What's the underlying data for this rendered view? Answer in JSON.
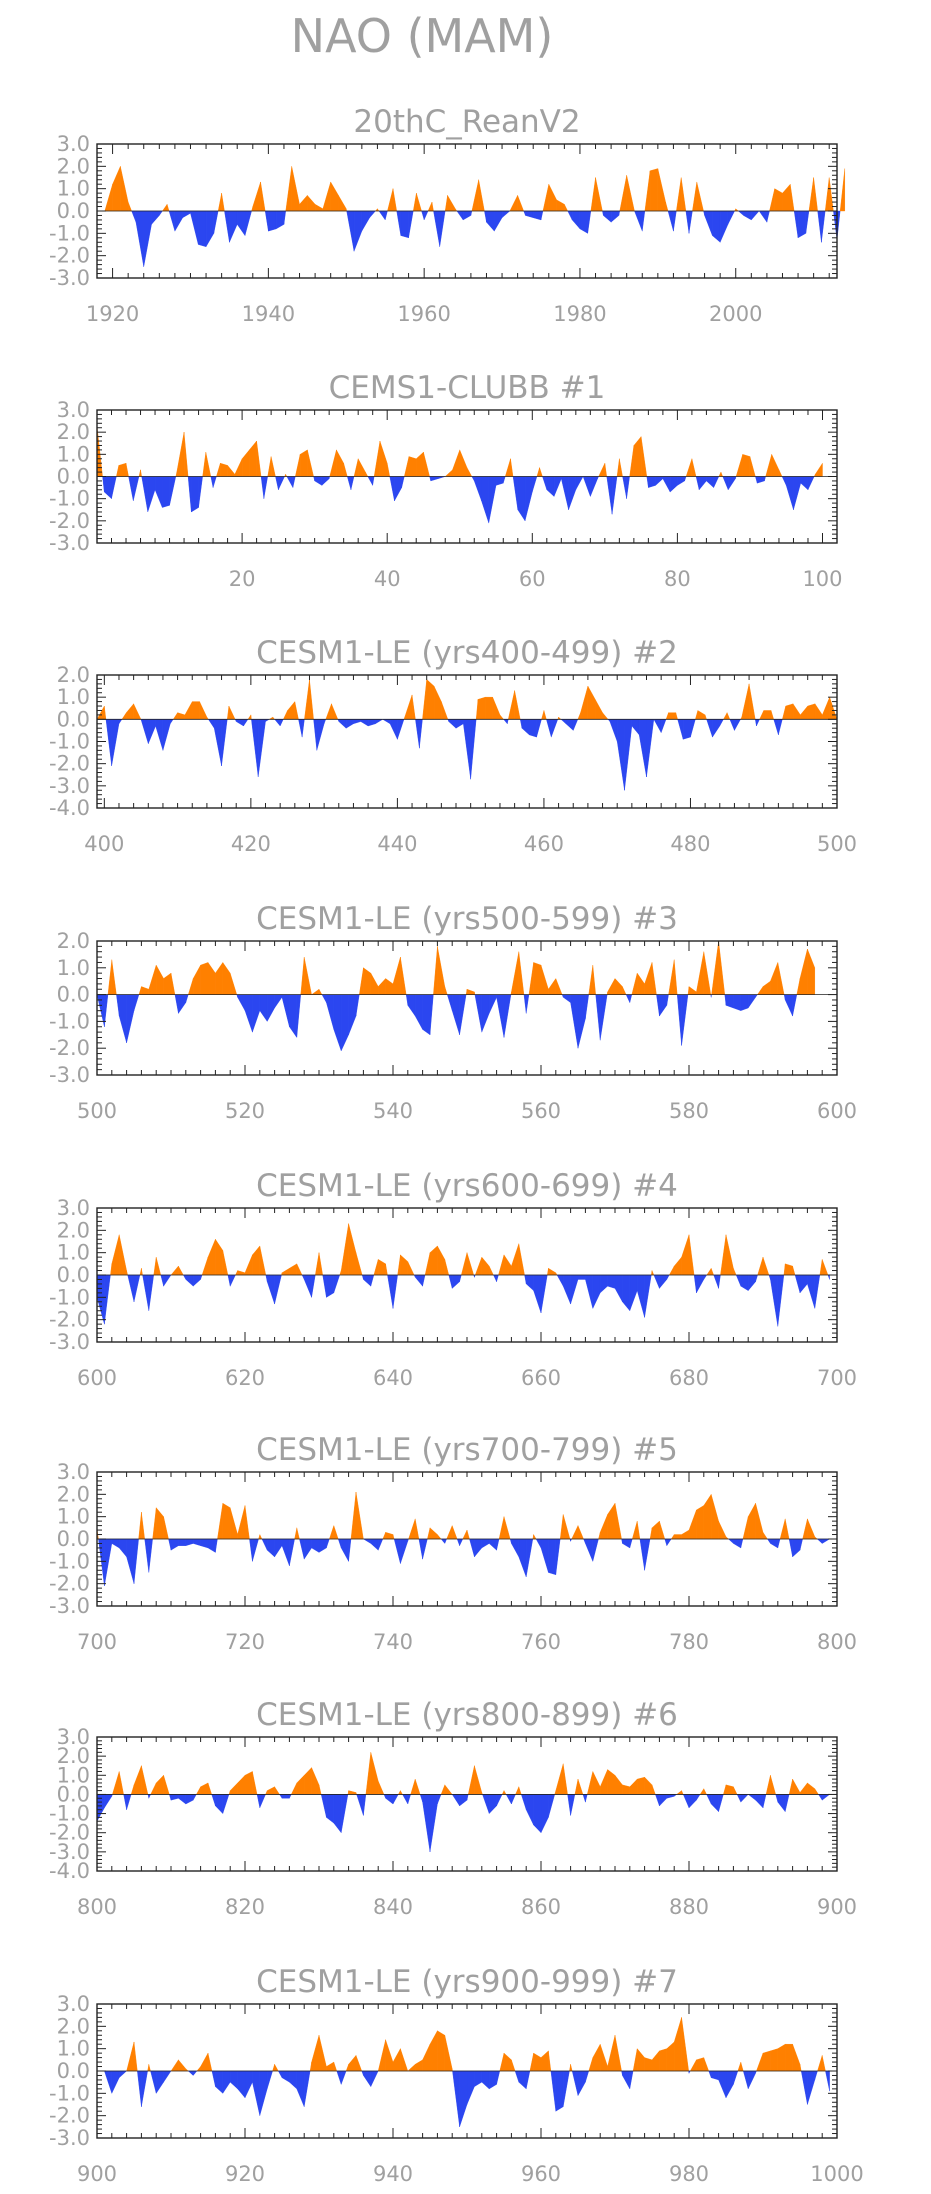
{
  "figure": {
    "title": "NAO (MAM)"
  },
  "colors": {
    "positive": "#ff8000",
    "negative": "#2b46f0",
    "axes": "#222222",
    "text": "#a0a0a0"
  },
  "chart_data": [
    {
      "type": "area",
      "title": "20thC_ReanV2",
      "xlim": [
        1918,
        2013
      ],
      "x_ticks": [
        1920,
        1940,
        1960,
        1980,
        2000
      ],
      "ylim": [
        -3.0,
        3.0
      ],
      "y_ticks": [
        "3.0",
        "2.0",
        "1.0",
        "0.0",
        "-1.0",
        "-2.0",
        "-3.0"
      ],
      "x_start": 1918,
      "values": [
        0.0,
        0.0,
        1.2,
        2.0,
        0.4,
        -0.5,
        -2.5,
        -0.6,
        -0.2,
        0.3,
        -0.9,
        -0.3,
        -0.1,
        -1.5,
        -1.6,
        -1.0,
        0.8,
        -1.4,
        -0.6,
        -1.1,
        0.2,
        1.3,
        -0.9,
        -0.8,
        -0.6,
        2.0,
        0.3,
        0.7,
        0.3,
        0.1,
        1.3,
        0.7,
        0.1,
        -1.8,
        -0.9,
        -0.3,
        0.1,
        -0.4,
        1.0,
        -1.1,
        -1.2,
        0.8,
        -0.4,
        0.4,
        -1.6,
        0.7,
        0.1,
        -0.4,
        -0.2,
        1.4,
        -0.5,
        -0.9,
        -0.3,
        0.0,
        0.7,
        -0.2,
        -0.3,
        -0.4,
        1.2,
        0.5,
        0.3,
        -0.4,
        -0.8,
        -1.0,
        1.5,
        -0.2,
        -0.5,
        -0.2,
        1.6,
        0.0,
        -0.9,
        1.8,
        1.9,
        0.4,
        -0.9,
        1.5,
        -1.0,
        1.3,
        -0.2,
        -1.1,
        -1.4,
        -0.6,
        0.1,
        -0.2,
        -0.4,
        0.0,
        -0.5,
        1.0,
        0.8,
        1.2,
        -1.2,
        -1.0,
        1.5,
        -1.4,
        1.5,
        -1.3,
        1.9
      ]
    },
    {
      "type": "area",
      "title": "CEMS1-CLUBB        #1",
      "xlim": [
        0,
        102
      ],
      "x_ticks": [
        20,
        40,
        60,
        80,
        100
      ],
      "ylim": [
        -3.0,
        3.0
      ],
      "y_ticks": [
        "3.0",
        "2.0",
        "1.0",
        "0.0",
        "-1.0",
        "-2.0",
        "-3.0"
      ],
      "x_start": 0,
      "values": [
        2.3,
        -0.7,
        -1.0,
        0.5,
        0.6,
        -1.1,
        0.3,
        -1.6,
        -0.6,
        -1.4,
        -1.3,
        0.2,
        2.0,
        -1.6,
        -1.4,
        1.1,
        -0.5,
        0.6,
        0.5,
        0.1,
        0.8,
        1.2,
        1.6,
        -1.0,
        0.9,
        -0.6,
        0.1,
        -0.5,
        1.0,
        1.2,
        -0.2,
        -0.4,
        -0.1,
        1.2,
        0.6,
        -0.6,
        0.8,
        0.2,
        -0.4,
        1.6,
        0.6,
        -1.1,
        -0.5,
        0.9,
        0.8,
        1.1,
        -0.2,
        -0.1,
        0.0,
        0.3,
        1.2,
        0.4,
        -0.2,
        -1.1,
        -2.1,
        -0.4,
        -0.3,
        0.8,
        -1.5,
        -2.0,
        -0.7,
        0.4,
        -0.6,
        -0.9,
        -0.1,
        -1.5,
        -0.6,
        0.0,
        -0.9,
        -0.1,
        0.6,
        -1.7,
        0.8,
        -1.0,
        1.4,
        1.8,
        -0.5,
        -0.4,
        -0.1,
        -0.7,
        -0.4,
        -0.2,
        0.8,
        -0.6,
        -0.2,
        -0.5,
        0.2,
        -0.6,
        -0.1,
        1.0,
        0.9,
        -0.3,
        -0.2,
        1.0,
        0.3,
        -0.4,
        -1.5,
        -0.3,
        -0.6,
        0.1,
        0.6
      ]
    },
    {
      "type": "area",
      "title": "CESM1-LE (yrs400-499) #2",
      "xlim": [
        399,
        500
      ],
      "x_ticks": [
        400,
        420,
        440,
        460,
        480,
        500
      ],
      "ylim": [
        -4.0,
        2.0
      ],
      "y_ticks": [
        "2.0",
        "1.0",
        "0.0",
        "-1.0",
        "-2.0",
        "-3.0",
        "-4.0"
      ],
      "x_start": 399,
      "values": [
        0.0,
        0.6,
        -2.1,
        -0.2,
        0.3,
        0.7,
        0.0,
        -1.1,
        -0.3,
        -1.4,
        -0.2,
        0.3,
        0.2,
        0.8,
        0.8,
        0.1,
        -0.4,
        -2.1,
        0.6,
        -0.1,
        -0.3,
        0.2,
        -2.6,
        -0.1,
        0.1,
        -0.3,
        0.4,
        0.8,
        -0.8,
        1.8,
        -1.4,
        -0.2,
        0.7,
        -0.1,
        -0.4,
        -0.2,
        -0.1,
        -0.3,
        -0.2,
        0.0,
        -0.2,
        -0.9,
        0.1,
        1.1,
        -1.3,
        1.8,
        1.5,
        0.8,
        -0.1,
        -0.4,
        -0.2,
        -2.7,
        0.9,
        1.0,
        1.0,
        0.2,
        -0.2,
        1.3,
        -0.4,
        -0.7,
        -0.8,
        0.4,
        -0.8,
        0.1,
        -0.2,
        -0.5,
        0.3,
        1.5,
        0.9,
        0.3,
        -0.1,
        -1.0,
        -3.2,
        -0.3,
        -0.7,
        -2.6,
        0.0,
        -0.6,
        0.3,
        0.3,
        -0.9,
        -0.8,
        0.4,
        0.2,
        -0.8,
        -0.3,
        0.3,
        -0.5,
        0.1,
        1.6,
        -0.3,
        0.4,
        0.4,
        -0.7,
        0.6,
        0.7,
        0.2,
        0.6,
        0.7,
        0.2,
        1.0,
        0.0
      ]
    },
    {
      "type": "area",
      "title": "CESM1-LE (yrs500-599) #3",
      "xlim": [
        500,
        600
      ],
      "x_ticks": [
        500,
        520,
        540,
        560,
        580,
        600
      ],
      "ylim": [
        -3.0,
        2.0
      ],
      "y_ticks": [
        "2.0",
        "1.0",
        "0.0",
        "-1.0",
        "-2.0",
        "-3.0"
      ],
      "x_start": 500,
      "values": [
        0.0,
        -1.2,
        1.3,
        -0.8,
        -1.8,
        -0.6,
        0.3,
        0.2,
        1.1,
        0.6,
        0.8,
        -0.7,
        -0.3,
        0.6,
        1.1,
        1.2,
        0.8,
        1.2,
        0.8,
        -0.1,
        -0.6,
        -1.4,
        -0.6,
        -1.0,
        -0.5,
        -0.1,
        -1.2,
        -1.6,
        1.4,
        0.0,
        0.2,
        -0.3,
        -1.3,
        -2.1,
        -1.5,
        -0.8,
        1.0,
        0.8,
        0.3,
        0.6,
        0.4,
        1.4,
        -0.4,
        -0.8,
        -1.3,
        -1.5,
        1.8,
        0.3,
        -0.6,
        -1.5,
        0.2,
        0.1,
        -1.4,
        -0.7,
        -0.1,
        -1.6,
        0.1,
        1.6,
        -0.7,
        1.2,
        1.1,
        0.2,
        0.6,
        -0.1,
        -0.3,
        -2.0,
        -0.9,
        1.1,
        -1.7,
        0.1,
        0.6,
        0.3,
        -0.3,
        0.8,
        0.4,
        1.2,
        -0.8,
        -0.4,
        1.3,
        -1.9,
        0.3,
        0.1,
        1.6,
        -0.1,
        2.0,
        -0.4,
        -0.5,
        -0.6,
        -0.5,
        -0.1,
        0.3,
        0.5,
        1.2,
        -0.2,
        -0.8,
        0.6,
        1.7,
        1.0
      ]
    },
    {
      "type": "area",
      "title": "CESM1-LE (yrs600-699) #4",
      "xlim": [
        600,
        700
      ],
      "x_ticks": [
        600,
        620,
        640,
        660,
        680,
        700
      ],
      "ylim": [
        -3.0,
        3.0
      ],
      "y_ticks": [
        "3.0",
        "2.0",
        "1.0",
        "0.0",
        "-1.0",
        "-2.0",
        "-3.0"
      ],
      "x_start": 600,
      "values": [
        -1.0,
        -2.2,
        0.5,
        1.8,
        0.2,
        -1.2,
        0.3,
        -1.6,
        0.8,
        -0.5,
        0.0,
        0.4,
        -0.2,
        -0.5,
        -0.2,
        0.8,
        1.6,
        1.1,
        -0.5,
        0.2,
        0.1,
        0.9,
        1.3,
        -0.3,
        -1.3,
        0.1,
        0.3,
        0.5,
        -0.2,
        -1.0,
        1.0,
        -1.0,
        -0.8,
        0.2,
        2.3,
        1.0,
        -0.2,
        -0.5,
        0.7,
        0.5,
        -1.5,
        0.9,
        0.6,
        -0.1,
        -0.5,
        1.0,
        1.3,
        0.7,
        -0.6,
        -0.3,
        1.0,
        -0.1,
        0.8,
        0.4,
        -0.3,
        0.9,
        0.4,
        1.4,
        -0.4,
        -0.7,
        -1.7,
        0.3,
        0.1,
        -0.5,
        -1.3,
        -0.2,
        -0.2,
        -1.5,
        -0.8,
        -0.5,
        -0.6,
        -1.2,
        -1.6,
        -0.7,
        -1.9,
        0.2,
        -0.6,
        -0.2,
        0.4,
        0.8,
        1.8,
        -0.8,
        -0.2,
        0.3,
        -0.6,
        1.8,
        0.3,
        -0.5,
        -0.7,
        -0.3,
        0.8,
        -0.2,
        -2.3,
        0.5,
        0.4,
        -0.8,
        -0.4,
        -1.5,
        0.7,
        -0.2
      ]
    },
    {
      "type": "area",
      "title": "CESM1-LE (yrs700-799) #5",
      "xlim": [
        700,
        800
      ],
      "x_ticks": [
        700,
        720,
        740,
        760,
        780,
        800
      ],
      "ylim": [
        -3.0,
        3.0
      ],
      "y_ticks": [
        "3.0",
        "2.0",
        "1.0",
        "0.0",
        "-1.0",
        "-2.0",
        "-3.0"
      ],
      "x_start": 700,
      "values": [
        0.5,
        -2.1,
        -0.2,
        -0.4,
        -0.8,
        -2.0,
        1.2,
        -1.5,
        1.4,
        1.0,
        -0.5,
        -0.3,
        -0.3,
        -0.2,
        -0.3,
        -0.4,
        -0.6,
        1.6,
        1.4,
        0.2,
        1.5,
        -1.0,
        0.2,
        -0.5,
        -0.8,
        -0.3,
        -1.2,
        0.5,
        -0.9,
        -0.4,
        -0.6,
        -0.4,
        0.6,
        -0.4,
        -1.0,
        2.1,
        0.0,
        -0.2,
        -0.5,
        0.3,
        0.2,
        -1.1,
        -0.1,
        0.9,
        -0.9,
        0.5,
        0.2,
        -0.2,
        0.6,
        -0.3,
        0.4,
        -0.8,
        -0.4,
        -0.2,
        -0.5,
        1.0,
        -0.2,
        -0.8,
        -1.7,
        0.2,
        -0.4,
        -1.5,
        -1.6,
        1.1,
        -0.1,
        0.6,
        -0.2,
        -1.0,
        0.3,
        1.1,
        1.6,
        -0.2,
        -0.4,
        0.8,
        -1.4,
        0.5,
        0.8,
        -0.3,
        0.2,
        0.2,
        0.4,
        1.3,
        1.5,
        2.0,
        0.8,
        0.1,
        -0.2,
        -0.4,
        1.0,
        1.6,
        0.3,
        -0.2,
        -0.4,
        0.9,
        -0.8,
        -0.5,
        0.9,
        0.1,
        -0.2,
        0.0
      ]
    },
    {
      "type": "area",
      "title": "CESM1-LE (yrs800-899) #6",
      "xlim": [
        800,
        900
      ],
      "x_ticks": [
        800,
        820,
        840,
        860,
        880,
        900
      ],
      "ylim": [
        -4.0,
        3.0
      ],
      "y_ticks": [
        "3.0",
        "2.0",
        "1.0",
        "0.0",
        "-1.0",
        "-2.0",
        "-3.0",
        "-4.0"
      ],
      "x_start": 800,
      "values": [
        -1.4,
        -0.7,
        -0.1,
        1.2,
        -0.8,
        0.5,
        1.5,
        -0.2,
        0.6,
        1.0,
        -0.3,
        -0.2,
        -0.5,
        -0.3,
        0.4,
        0.6,
        -0.6,
        -1.0,
        0.2,
        0.6,
        1.0,
        1.2,
        -0.7,
        0.2,
        0.4,
        -0.2,
        -0.2,
        0.6,
        1.0,
        1.4,
        0.5,
        -1.2,
        -1.5,
        -2.0,
        0.2,
        0.1,
        -1.1,
        2.2,
        0.7,
        -0.2,
        -0.5,
        0.2,
        -0.5,
        0.8,
        -0.4,
        -3.0,
        -0.5,
        0.5,
        0.0,
        -0.6,
        -0.3,
        1.5,
        0.1,
        -1.0,
        -0.6,
        0.2,
        -0.5,
        0.4,
        -0.8,
        -1.6,
        -2.0,
        -1.2,
        0.2,
        1.6,
        -1.1,
        0.8,
        -0.4,
        1.2,
        0.4,
        1.3,
        1.0,
        0.5,
        0.4,
        0.8,
        0.9,
        0.5,
        -0.6,
        -0.2,
        -0.1,
        0.2,
        -0.7,
        -0.3,
        0.3,
        -0.5,
        -0.9,
        0.5,
        0.4,
        -0.4,
        0.0,
        -0.3,
        -0.7,
        1.0,
        -0.4,
        -0.9,
        0.8,
        0.1,
        0.6,
        0.3,
        -0.3,
        0.0
      ]
    },
    {
      "type": "area",
      "title": "CESM1-LE (yrs900-999) #7",
      "xlim": [
        900,
        1000
      ],
      "x_ticks": [
        900,
        920,
        940,
        960,
        980,
        1000
      ],
      "ylim": [
        -3.0,
        3.0
      ],
      "y_ticks": [
        "3.0",
        "2.0",
        "1.0",
        "0.0",
        "-1.0",
        "-2.0",
        "-3.0"
      ],
      "x_start": 900,
      "values": [
        0.0,
        0.0,
        -1.0,
        -0.3,
        0.0,
        1.3,
        -1.6,
        0.3,
        -1.0,
        -0.5,
        0.0,
        0.5,
        0.1,
        -0.2,
        0.2,
        0.8,
        -0.7,
        -1.0,
        -0.5,
        -0.8,
        -1.2,
        -0.5,
        -2.0,
        -0.8,
        0.3,
        -0.3,
        -0.5,
        -0.8,
        -1.6,
        0.4,
        1.6,
        0.2,
        0.4,
        -0.6,
        0.3,
        0.7,
        -0.2,
        -0.7,
        0.0,
        1.4,
        0.4,
        1.0,
        0.0,
        0.3,
        0.5,
        1.2,
        1.8,
        1.6,
        0.1,
        -2.5,
        -1.5,
        -0.7,
        -0.5,
        -0.8,
        -0.6,
        0.8,
        0.5,
        -0.5,
        -0.8,
        0.8,
        0.6,
        0.9,
        -1.8,
        -1.6,
        0.3,
        -1.1,
        -0.5,
        0.6,
        1.2,
        0.2,
        1.6,
        -0.2,
        -0.8,
        1.0,
        0.6,
        0.5,
        0.9,
        1.0,
        1.3,
        2.4,
        -0.1,
        0.5,
        0.6,
        -0.3,
        -0.4,
        -1.2,
        -0.6,
        0.4,
        -0.8,
        -0.1,
        0.8,
        0.9,
        1.0,
        1.2,
        1.2,
        0.3,
        -1.5,
        -0.4,
        0.7,
        -0.9
      ]
    }
  ]
}
